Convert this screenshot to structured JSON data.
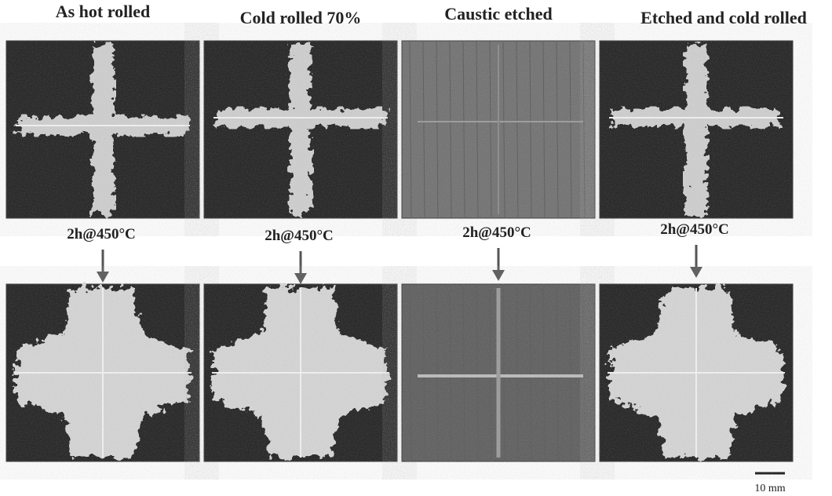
{
  "columns": [
    {
      "title": "As hot rolled",
      "treatment": "2h@450°C"
    },
    {
      "title": "Cold rolled 70%",
      "treatment": "2h@450°C"
    },
    {
      "title": "Caustic etched",
      "treatment": "2h@450°C"
    },
    {
      "title": "Etched and cold rolled",
      "treatment": "2h@450°C"
    }
  ],
  "scale_bar": {
    "label": "10 mm"
  }
}
